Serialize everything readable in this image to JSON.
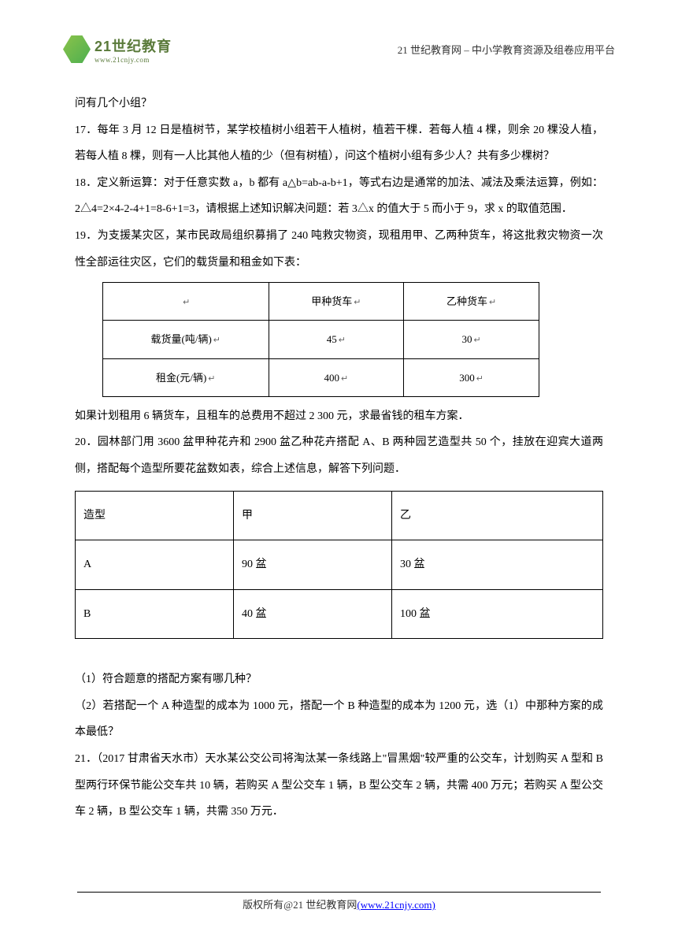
{
  "header": {
    "logo_title": "21世纪教育",
    "logo_url": "www.21cnjy.com",
    "right_text": "21 世纪教育网 – 中小学教育资源及组卷应用平台"
  },
  "content": {
    "p1": "问有几个小组？",
    "p2": "17．每年 3 月 12 日是植树节，某学校植树小组若干人植树，植若干棵．若每人植 4 棵，则余 20 棵没人植，若每人植 8 棵，则有一人比其他人植的少（但有树植），问这个植树小组有多少人？共有多少棵树？",
    "p3": "18．定义新运算：对于任意实数 a，b 都有 a△b=ab-a-b+1，等式右边是通常的加法、减法及乘法运算，例如：2△4=2×4-2-4+1=8-6+1=3，请根据上述知识解决问题：若 3△x 的值大于 5 而小于 9，求 x 的取值范围．",
    "p4": "19．为支援某灾区，某市民政局组织募捐了 240 吨救灾物资，现租用甲、乙两种货车，将这批救灾物资一次性全部运往灾区，它们的载货量和租金如下表：",
    "p5": "如果计划租用 6 辆货车，且租车的总费用不超过 2 300 元，求最省钱的租车方案．",
    "p6": "20．园林部门用 3600 盆甲种花卉和 2900 盆乙种花卉搭配 A、B 两种园艺造型共 50 个，挂放在迎宾大道两侧，搭配每个造型所要花盆数如表，综合上述信息，解答下列问题．",
    "p7": "（1）符合题意的搭配方案有哪几种？",
    "p8": "（2）若搭配一个 A 种造型的成本为 1000 元，搭配一个 B 种造型的成本为 1200 元，选（1）中那种方案的成本最低？",
    "p9": "21．（2017 甘肃省天水市）天水某公交公司将淘汰某一条线路上\"冒黑烟\"较严重的公交车，计划购买 A 型和 B 型两行环保节能公交车共 10 辆，若购买 A 型公交车 1 辆，B 型公交车 2 辆，共需 400 万元；若购买 A 型公交车 2 辆，B 型公交车 1 辆，共需 350 万元．"
  },
  "table1": {
    "row1": {
      "col1": "",
      "col2": "甲种货车",
      "col3": "乙种货车"
    },
    "row2": {
      "col1": "载货量(吨/辆)",
      "col2": "45",
      "col3": "30"
    },
    "row3": {
      "col1": "租金(元/辆)",
      "col2": "400",
      "col3": "300"
    },
    "marker": "↵"
  },
  "table2": {
    "row1": {
      "col1": "造型",
      "col2": "甲",
      "col3": "乙"
    },
    "row2": {
      "col1": "A",
      "col2": "90 盆",
      "col3": "30 盆"
    },
    "row3": {
      "col1": "B",
      "col2": "40 盆",
      "col3": "100 盆"
    }
  },
  "footer": {
    "text_prefix": "版权所有@21 世纪教育网",
    "link_text": "(www.21cnjy.com)"
  },
  "colors": {
    "text": "#000000",
    "logo_green": "#5a7a3a",
    "link_blue": "#0000ff",
    "border": "#000000",
    "background": "#ffffff"
  }
}
